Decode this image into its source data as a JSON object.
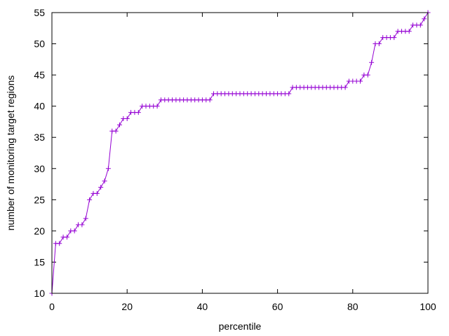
{
  "chart_data": {
    "type": "line",
    "title": "",
    "xlabel": "percentile",
    "ylabel": "number of monitoring target regions",
    "xlim": [
      0,
      100
    ],
    "ylim": [
      10,
      55
    ],
    "xticks": [
      0,
      20,
      40,
      60,
      80,
      100
    ],
    "yticks": [
      10,
      15,
      20,
      25,
      30,
      35,
      40,
      45,
      50,
      55
    ],
    "grid": false,
    "legend": "none",
    "marker": "plus",
    "series": [
      {
        "color": "#9400d3",
        "x": [
          0,
          1,
          2,
          3,
          4,
          5,
          6,
          7,
          8,
          9,
          10,
          11,
          12,
          13,
          14,
          15,
          16,
          17,
          18,
          19,
          20,
          21,
          22,
          23,
          24,
          25,
          26,
          27,
          28,
          29,
          30,
          31,
          32,
          33,
          34,
          35,
          36,
          37,
          38,
          39,
          40,
          41,
          42,
          43,
          44,
          45,
          46,
          47,
          48,
          49,
          50,
          51,
          52,
          53,
          54,
          55,
          56,
          57,
          58,
          59,
          60,
          61,
          62,
          63,
          64,
          65,
          66,
          67,
          68,
          69,
          70,
          71,
          72,
          73,
          74,
          75,
          76,
          77,
          78,
          79,
          80,
          81,
          82,
          83,
          84,
          85,
          86,
          87,
          88,
          89,
          90,
          91,
          92,
          93,
          94,
          95,
          96,
          97,
          98,
          99,
          100
        ],
        "y": [
          10,
          18,
          18,
          19,
          19,
          20,
          20,
          21,
          21,
          22,
          25,
          26,
          26,
          27,
          28,
          30,
          36,
          36,
          37,
          38,
          38,
          39,
          39,
          39,
          40,
          40,
          40,
          40,
          40,
          41,
          41,
          41,
          41,
          41,
          41,
          41,
          41,
          41,
          41,
          41,
          41,
          41,
          41,
          42,
          42,
          42,
          42,
          42,
          42,
          42,
          42,
          42,
          42,
          42,
          42,
          42,
          42,
          42,
          42,
          42,
          42,
          42,
          42,
          42,
          43,
          43,
          43,
          43,
          43,
          43,
          43,
          43,
          43,
          43,
          43,
          43,
          43,
          43,
          43,
          44,
          44,
          44,
          44,
          45,
          45,
          47,
          50,
          50,
          51,
          51,
          51,
          51,
          52,
          52,
          52,
          52,
          53,
          53,
          53,
          54,
          55
        ]
      }
    ]
  }
}
